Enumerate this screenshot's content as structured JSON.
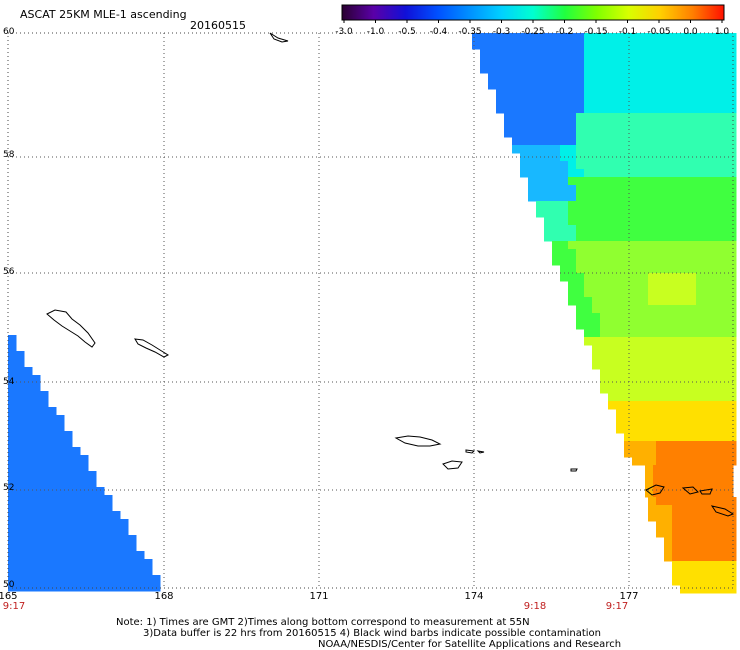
{
  "header": {
    "title": "ASCAT 25KM MLE-1 ascending",
    "date": "20160515"
  },
  "colorbar": {
    "labels": [
      "-3.0",
      "-1.0",
      "-0.5",
      "-0.4",
      "-0.35",
      "-0.3",
      "-0.25",
      "-0.2",
      "-0.15",
      "-0.1",
      "-0.05",
      "0.0",
      "1.0"
    ],
    "colors": [
      "#2a0030",
      "#5a00a8",
      "#1010d8",
      "#0050ff",
      "#0090ff",
      "#00d0ff",
      "#00ffd0",
      "#20ff40",
      "#80ff00",
      "#d8ff00",
      "#ffd000",
      "#ff8000",
      "#ff1000"
    ]
  },
  "map": {
    "lat_labels": [
      "60",
      "58",
      "56",
      "54",
      "52",
      "50"
    ],
    "lon_labels": [
      "165",
      "168",
      "171",
      "174",
      "177"
    ],
    "time_labels": [
      {
        "lon": "165",
        "text": "9:17"
      },
      {
        "lon": "174",
        "text": "9:18"
      },
      {
        "lon": "177",
        "text": "9:17"
      }
    ],
    "swath_colors": {
      "blue": "#1a78ff",
      "light_blue": "#18b8ff",
      "cyan": "#00f0e8",
      "aqua_green": "#30ffb0",
      "green": "#40ff40",
      "light_green": "#90ff30",
      "yellow_green": "#c8ff20",
      "yellow": "#ffe000",
      "orange_yellow": "#ffb000",
      "orange": "#ff8000"
    }
  },
  "footer": {
    "line1": "Note: 1) Times are GMT 2)Times along bottom correspond to measurement at 55N",
    "line2": "3)Data buffer is 22 hrs from 20160515 4) Black wind barbs indicate possible contamination",
    "line3": "NOAA/NESDIS/Center for Satellite Applications and Research"
  }
}
